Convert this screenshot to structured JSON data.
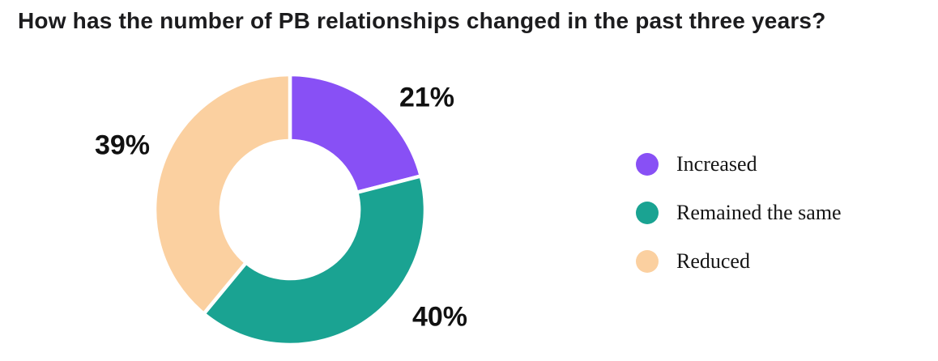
{
  "page": {
    "background_color": "#ffffff"
  },
  "chart_data": {
    "type": "pie",
    "subtype": "donut",
    "title": "How has the number of PB relationships changed in the past three years?",
    "categories": [
      "Increased",
      "Remained the same",
      "Reduced"
    ],
    "values": [
      21,
      40,
      39
    ],
    "unit": "%",
    "labels": [
      "21%",
      "40%",
      "39%"
    ],
    "colors": [
      "#8850F5",
      "#1AA392",
      "#FBD0A0"
    ],
    "start_angle_deg": 0,
    "direction": "clockwise",
    "donut_hole_ratio": 0.51,
    "slice_gap_color": "#ffffff",
    "title_color": "#1c1c1e",
    "label_text_color": "#111111",
    "legend_position": "right",
    "legend": [
      {
        "label": "Increased",
        "color": "#8850F5"
      },
      {
        "label": "Remained the same",
        "color": "#1AA392"
      },
      {
        "label": "Reduced",
        "color": "#FBD0A0"
      }
    ]
  }
}
